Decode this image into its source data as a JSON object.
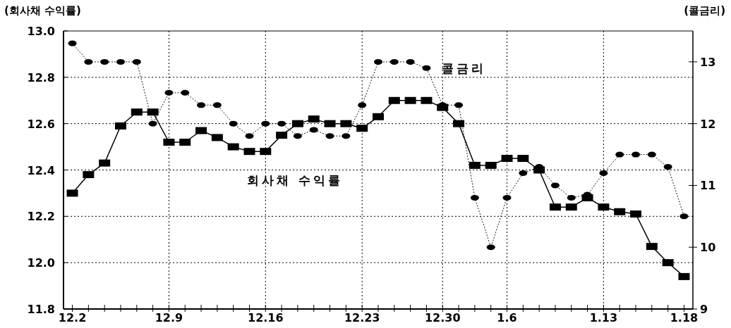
{
  "chart_data": {
    "type": "line",
    "ylabel": "(회사채 수익률)",
    "y2label": "(콜금리)",
    "categories": [
      "12.2",
      null,
      null,
      null,
      null,
      null,
      "12.9",
      null,
      null,
      null,
      null,
      null,
      "12.16",
      null,
      null,
      null,
      null,
      null,
      "12.23",
      null,
      null,
      null,
      null,
      "12.30",
      null,
      null,
      null,
      "1.6",
      null,
      null,
      null,
      null,
      null,
      "1.13",
      null,
      null,
      null,
      null,
      "1.18"
    ],
    "series": [
      {
        "name": "회사채 수익률",
        "color": "#000000",
        "marker": "square",
        "line_style": "solid",
        "values": [
          12.3,
          12.38,
          12.43,
          12.59,
          12.65,
          12.65,
          12.52,
          12.52,
          12.57,
          12.54,
          12.5,
          12.48,
          12.48,
          12.55,
          12.6,
          12.62,
          12.6,
          12.6,
          12.58,
          12.63,
          12.7,
          12.7,
          12.7,
          12.67,
          12.6,
          12.42,
          12.42,
          12.45,
          12.45,
          12.4,
          12.24,
          12.24,
          12.28,
          12.24,
          12.22,
          12.21,
          12.07,
          12.0,
          11.94
        ]
      },
      {
        "name": "콜금리",
        "color": "#000000",
        "marker": "circle",
        "line_style": "dotted",
        "axis": "y2",
        "values": [
          13.3,
          13.0,
          13.0,
          13.0,
          13.0,
          12.0,
          12.5,
          12.5,
          12.3,
          12.3,
          12.0,
          11.8,
          12.0,
          12.0,
          11.8,
          11.9,
          11.8,
          11.8,
          12.3,
          13.0,
          13.0,
          13.0,
          12.9,
          12.3,
          12.3,
          10.8,
          10.0,
          10.8,
          11.2,
          11.3,
          11.0,
          10.8,
          10.85,
          11.2,
          11.5,
          11.5,
          11.5,
          11.3,
          10.5
        ]
      }
    ],
    "ylim": [
      11.8,
      13.0
    ],
    "yticks": [
      11.8,
      {
        "value": 12,
        "label": "12.0"
      },
      12.2,
      12.4,
      12.6,
      12.8,
      {
        "value": 13,
        "label": "13.0"
      }
    ],
    "y2lim": [
      9,
      13.5
    ],
    "y2ticks": [
      9,
      10,
      11,
      12,
      13
    ],
    "grid": true,
    "legend": false
  }
}
